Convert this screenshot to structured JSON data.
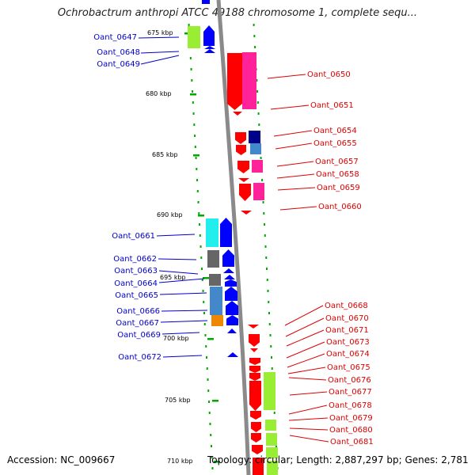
{
  "title": "Ochrobactrum anthropi ATCC 49188 chromosome 1, complete sequ...",
  "footer": {
    "accession": "Accession: NC_009667",
    "topology": "Topology: circular; Length: 2,887,297 bp; Genes: 2,781"
  },
  "colors": {
    "forward_label": "#0000cc",
    "reverse_label": "#dd0000",
    "axis": "#888888",
    "tick": "#00aa00"
  },
  "scale_ticks": [
    {
      "label": "675 kbp"
    },
    {
      "label": "680 kbp"
    },
    {
      "label": "685 kbp"
    },
    {
      "label": "690 kbp"
    },
    {
      "label": "695 kbp"
    },
    {
      "label": "700 kbp"
    },
    {
      "label": "705 kbp"
    },
    {
      "label": "710 kbp"
    }
  ],
  "left_genes": [
    {
      "name": "Oant_0647"
    },
    {
      "name": "Oant_0648"
    },
    {
      "name": "Oant_0649"
    },
    {
      "name": "Oant_0661"
    },
    {
      "name": "Oant_0662"
    },
    {
      "name": "Oant_0663"
    },
    {
      "name": "Oant_0664"
    },
    {
      "name": "Oant_0665"
    },
    {
      "name": "Oant_0666"
    },
    {
      "name": "Oant_0667"
    },
    {
      "name": "Oant_0669"
    },
    {
      "name": "Oant_0672"
    }
  ],
  "right_genes": [
    {
      "name": "Oant_0650"
    },
    {
      "name": "Oant_0651"
    },
    {
      "name": "Oant_0654"
    },
    {
      "name": "Oant_0655"
    },
    {
      "name": "Oant_0657"
    },
    {
      "name": "Oant_0658"
    },
    {
      "name": "Oant_0659"
    },
    {
      "name": "Oant_0660"
    },
    {
      "name": "Oant_0668"
    },
    {
      "name": "Oant_0670"
    },
    {
      "name": "Oant_0671"
    },
    {
      "name": "Oant_0673"
    },
    {
      "name": "Oant_0674"
    },
    {
      "name": "Oant_0675"
    },
    {
      "name": "Oant_0676"
    },
    {
      "name": "Oant_0677"
    },
    {
      "name": "Oant_0678"
    },
    {
      "name": "Oant_0679"
    },
    {
      "name": "Oant_0680"
    },
    {
      "name": "Oant_0681"
    }
  ]
}
